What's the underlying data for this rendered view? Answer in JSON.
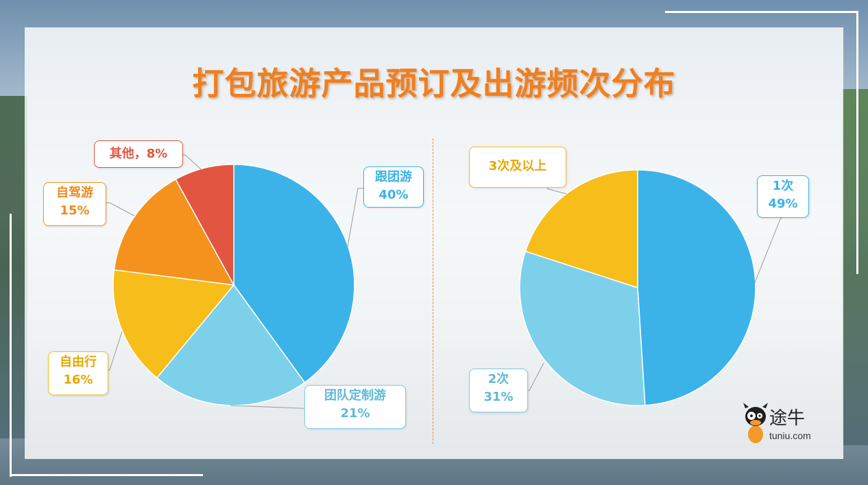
{
  "title": "打包旅游产品预订及出游频次分布",
  "colors": {
    "title": "#f07f1e",
    "blue": "#3bb3e8",
    "light_blue": "#7dd0ea",
    "yellow": "#f7bd1a",
    "orange": "#f5921e",
    "red": "#e25540"
  },
  "chart_data": [
    {
      "type": "pie",
      "title": "",
      "slices": [
        {
          "label": "跟团游",
          "value": 40,
          "display": "40%",
          "color": "#3bb3e8"
        },
        {
          "label": "团队定制游",
          "value": 21,
          "display": "21%",
          "color": "#7dd0ea"
        },
        {
          "label": "自由行",
          "value": 16,
          "display": "16%",
          "color": "#f7bd1a"
        },
        {
          "label": "自驾游",
          "value": 15,
          "display": "15%",
          "color": "#f5921e"
        },
        {
          "label": "其他，",
          "value": 8,
          "display": "8%",
          "color": "#e25540"
        }
      ]
    },
    {
      "type": "pie",
      "title": "",
      "slices": [
        {
          "label": "1次",
          "value": 49,
          "display": "49%",
          "color": "#3bb3e8"
        },
        {
          "label": "2次",
          "value": 31,
          "display": "31%",
          "color": "#7dd0ea"
        },
        {
          "label": "3次及以上",
          "value": 20,
          "display": "",
          "color": "#f7bd1a"
        }
      ]
    }
  ],
  "logo": {
    "name": "途牛",
    "domain": "tuniu.com",
    "icon": "cow-mascot-icon"
  }
}
